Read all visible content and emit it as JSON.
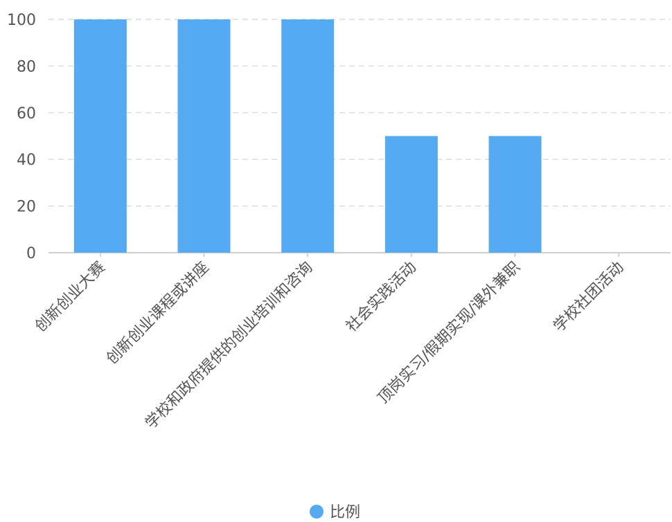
{
  "chart_data": {
    "type": "bar",
    "categories": [
      "创新创业大赛",
      "创新创业课程或讲座",
      "学校和政府提供的创业培训和咨询",
      "社会实践活动",
      "顶岗实习/假期实现/课外兼职",
      "学校社团活动"
    ],
    "series": [
      {
        "name": "比例",
        "values": [
          100,
          100,
          100,
          50,
          50,
          0
        ],
        "color": "#56aaf2"
      }
    ],
    "ylim": [
      0,
      100
    ],
    "yticks": [
      0,
      20,
      40,
      60,
      80,
      100
    ],
    "grid": true,
    "legend_position": "bottom-center"
  }
}
